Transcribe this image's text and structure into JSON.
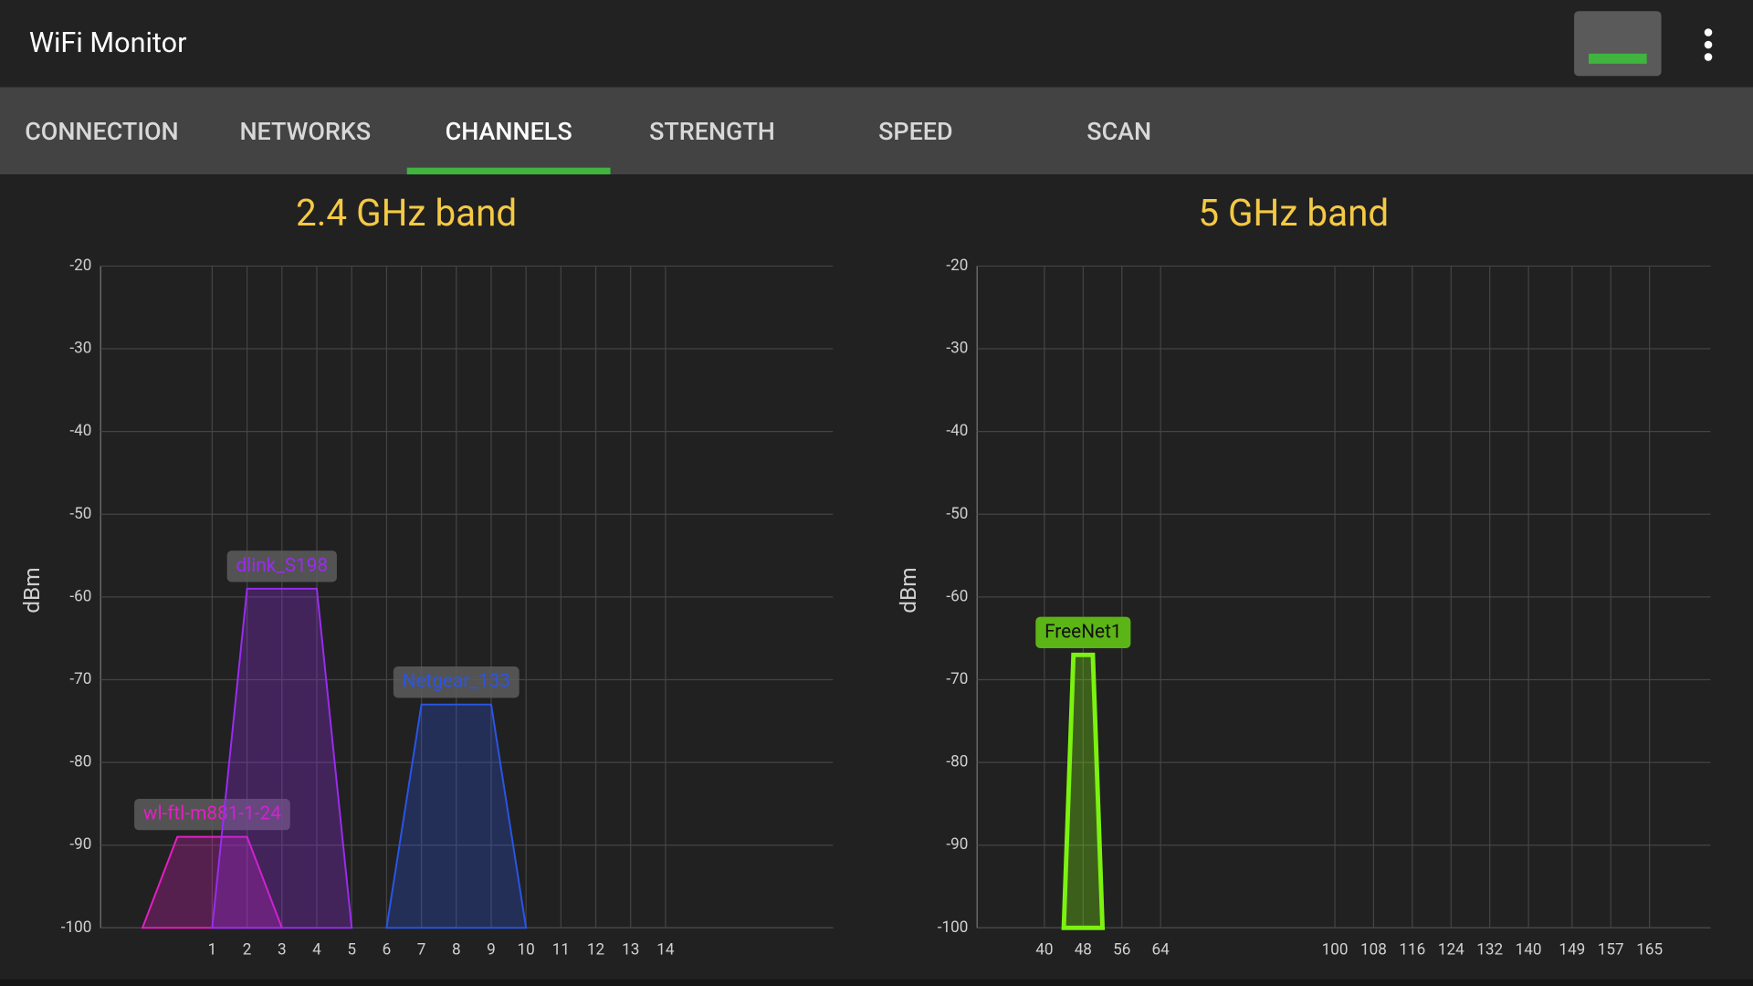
{
  "app_bar": {
    "title": "WiFi Monitor"
  },
  "tabs": [
    "CONNECTION",
    "NETWORKS",
    "CHANNELS",
    "STRENGTH",
    "SPEED",
    "SCAN"
  ],
  "selected_tab": 2,
  "chart_data": [
    {
      "type": "channel",
      "title": "2.4 GHz band",
      "y_label": "dBm",
      "xlim": [
        -2.2,
        18.8
      ],
      "xticks": [
        1,
        2,
        3,
        4,
        5,
        6,
        7,
        8,
        9,
        10,
        11,
        12,
        13,
        14
      ],
      "ylim": [
        -100,
        -20
      ],
      "yticks": [
        -100,
        -90,
        -80,
        -70,
        -60,
        -50,
        -40,
        -30,
        -20
      ],
      "grid": true,
      "networks": [
        {
          "name": "wl-ftl-m881-1-24",
          "color": "#e41fc4",
          "channel": 1,
          "signal": -89,
          "width": 20
        },
        {
          "name": "dlink_S198",
          "color": "#9a2cf0",
          "channel": 3,
          "signal": -59,
          "width": 20
        },
        {
          "name": "Netgear_133",
          "color": "#2a55e6",
          "channel": 8,
          "signal": -73,
          "width": 20
        }
      ]
    },
    {
      "type": "channel",
      "title": "5 GHz band",
      "y_label": "dBm",
      "xlim": [
        26.1,
        177.6
      ],
      "xticks": [
        40,
        48,
        56,
        64,
        100,
        108,
        116,
        124,
        132,
        140,
        149,
        157,
        165
      ],
      "ylim": [
        -100,
        -20
      ],
      "yticks": [
        -100,
        -90,
        -80,
        -70,
        -60,
        -50,
        -40,
        -30,
        -20
      ],
      "grid": true,
      "networks": [
        {
          "name": "FreeNet1",
          "color": "#7cf210",
          "channel": 48,
          "signal": -67,
          "width": 40
        }
      ]
    }
  ]
}
